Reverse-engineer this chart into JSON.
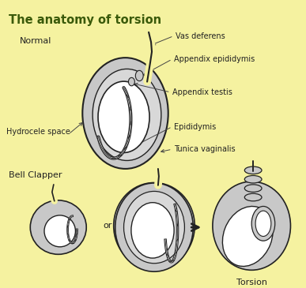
{
  "title": "The anatomy of torsion",
  "title_color": "#3a5a0a",
  "background_color": "#f5f2a0",
  "labels": {
    "normal": "Normal",
    "bell_clapper": "Bell Clapper",
    "vas_deferens": "Vas deferens",
    "appendix_epididymis": "Appendix epididymis",
    "appendix_testis": "Appendix testis",
    "epididymis": "Epididymis",
    "tunica_vaginalis": "Tunica vaginalis",
    "hydrocele_space": "Hydrocele space",
    "torsion": "Torsion",
    "or": "or"
  },
  "line_color": "#222222",
  "annotation_color": "#444444",
  "fill_outer": "#c8c8c8",
  "fill_inner": "#d8d8d8",
  "fill_white": "#ffffff",
  "fill_bg": "#f5f2a0"
}
